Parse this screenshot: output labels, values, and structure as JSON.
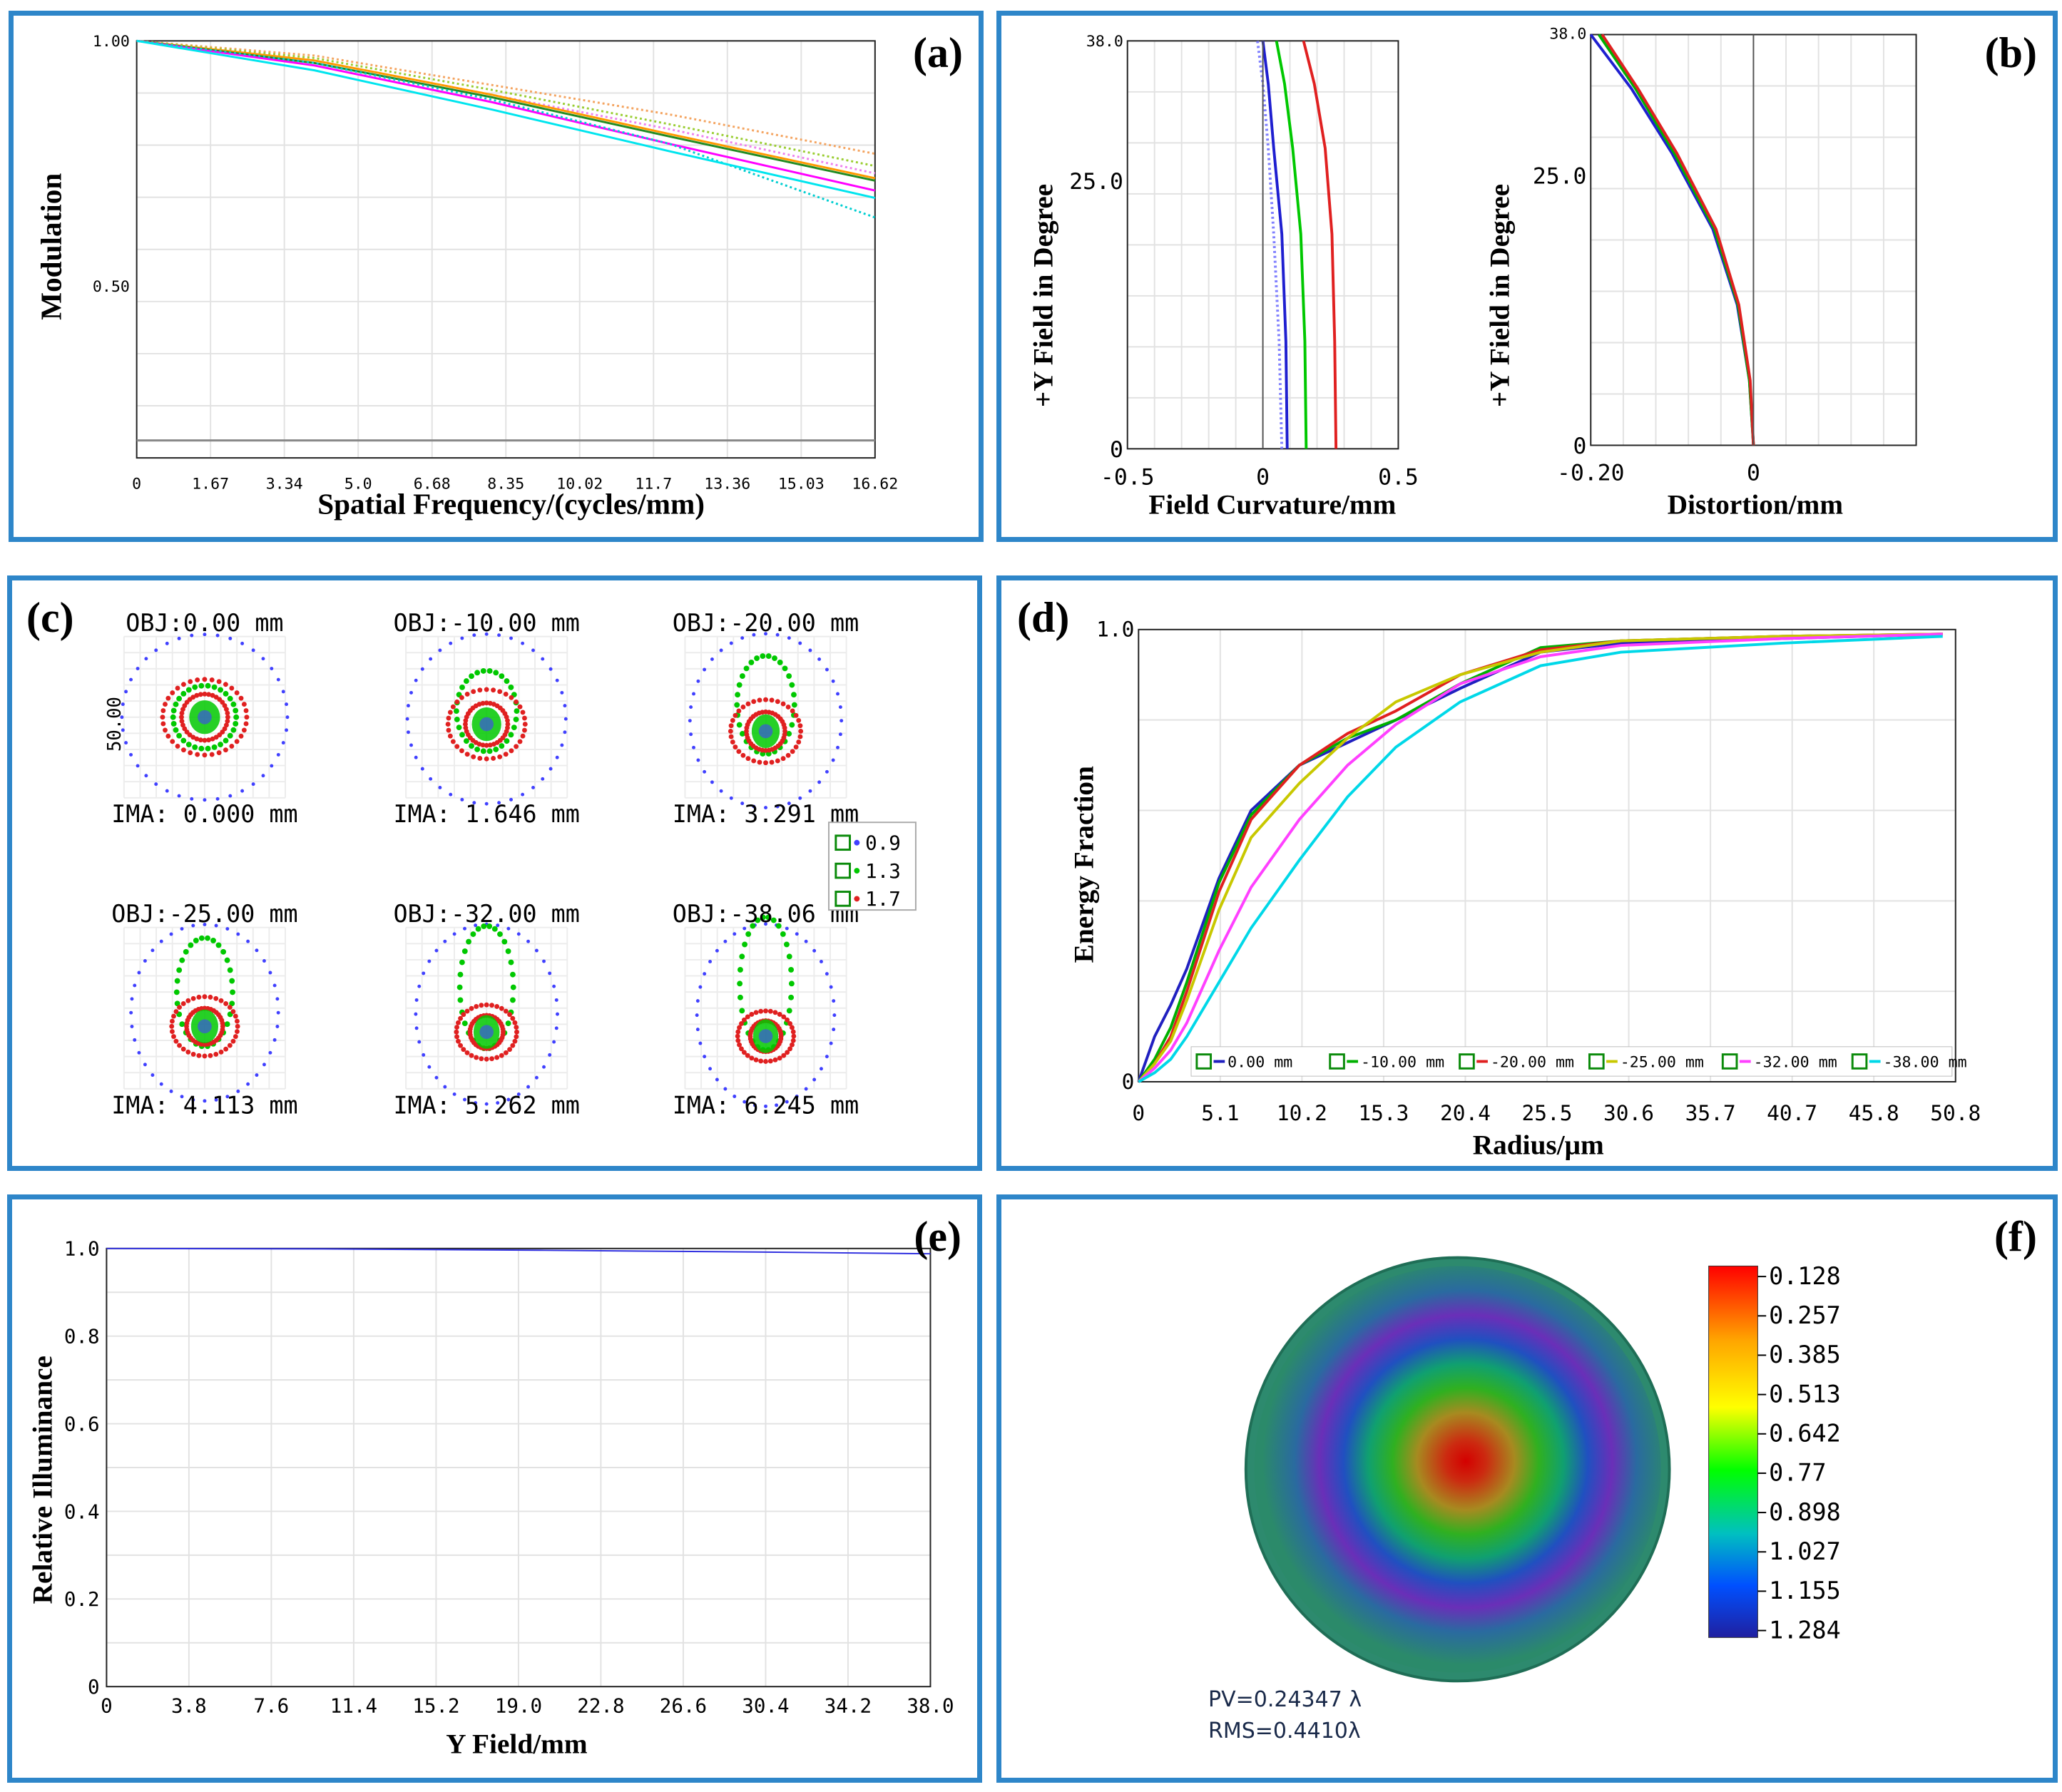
{
  "panels": {
    "a": {
      "label": "(a)"
    },
    "b": {
      "label": "(b)"
    },
    "c": {
      "label": "(c)"
    },
    "d": {
      "label": "(d)"
    },
    "e": {
      "label": "(e)"
    },
    "f": {
      "label": "(f)"
    }
  },
  "chart_data": [
    {
      "id": "a",
      "type": "line",
      "xlabel": "Spatial Frequency/(cycles/mm)",
      "ylabel": "Modulation",
      "xlim": [
        0,
        16.62
      ],
      "ylim": [
        0.15,
        1.0
      ],
      "x_ticks": [
        "0",
        "1.67",
        "3.34",
        "5.0",
        "6.68",
        "8.35",
        "10.02",
        "11.7",
        "13.36",
        "15.03",
        "16.62"
      ],
      "y_ticks": [
        "1.00",
        "0.50"
      ],
      "grid": true,
      "series": [
        {
          "color": "#f4a460",
          "dashed": true,
          "x": [
            0,
            4,
            8,
            12,
            16.62
          ],
          "y": [
            1.0,
            0.97,
            0.91,
            0.85,
            0.77
          ]
        },
        {
          "color": "#9acd32",
          "dashed": true,
          "x": [
            0,
            4,
            8,
            12,
            16.62
          ],
          "y": [
            1.0,
            0.965,
            0.9,
            0.83,
            0.745
          ]
        },
        {
          "color": "#ee82ee",
          "dashed": true,
          "x": [
            0,
            4,
            8,
            12,
            16.62
          ],
          "y": [
            1.0,
            0.96,
            0.89,
            0.82,
            0.73
          ]
        },
        {
          "color": "#ff9900",
          "dashed": false,
          "x": [
            0,
            4,
            8,
            12,
            16.62
          ],
          "y": [
            1.0,
            0.96,
            0.89,
            0.81,
            0.72
          ]
        },
        {
          "color": "#228b22",
          "dashed": false,
          "x": [
            0,
            4,
            8,
            12,
            16.62
          ],
          "y": [
            1.0,
            0.955,
            0.885,
            0.805,
            0.715
          ]
        },
        {
          "color": "#ff00ff",
          "dashed": false,
          "x": [
            0,
            4,
            8,
            12,
            16.62
          ],
          "y": [
            1.0,
            0.95,
            0.875,
            0.79,
            0.695
          ]
        },
        {
          "color": "#00ced1",
          "dashed": true,
          "x": [
            0,
            4,
            8,
            12,
            16.62
          ],
          "y": [
            1.0,
            0.955,
            0.88,
            0.79,
            0.64
          ]
        },
        {
          "color": "#00e5ee",
          "dashed": false,
          "x": [
            0,
            4,
            8,
            12,
            16.62
          ],
          "y": [
            1.0,
            0.94,
            0.86,
            0.775,
            0.68
          ]
        }
      ]
    },
    {
      "id": "b1",
      "type": "line",
      "xlabel": "Field Curvature/mm",
      "ylabel": "+Y Field in Degree",
      "xlim": [
        -0.5,
        0.5
      ],
      "ylim": [
        0,
        38.0
      ],
      "x_ticks": [
        "-0.5",
        "0",
        "0.5"
      ],
      "y_ticks": [
        "0",
        "25.0",
        "38.0"
      ],
      "grid": true,
      "series": [
        {
          "color": "#1f1fd0",
          "x": [
            0.09,
            0.085,
            0.07,
            0.04,
            0.02,
            0.0
          ],
          "y": [
            0,
            10,
            20,
            28,
            34,
            38
          ]
        },
        {
          "color": "#8080ff",
          "dashed": true,
          "x": [
            0.07,
            0.06,
            0.04,
            0.02,
            0.0,
            -0.02
          ],
          "y": [
            0,
            10,
            20,
            28,
            34,
            38
          ]
        },
        {
          "color": "#00c800",
          "x": [
            0.16,
            0.155,
            0.14,
            0.11,
            0.08,
            0.05
          ],
          "y": [
            0,
            10,
            20,
            28,
            34,
            38
          ]
        },
        {
          "color": "#e02020",
          "x": [
            0.27,
            0.265,
            0.255,
            0.23,
            0.19,
            0.15
          ],
          "y": [
            0,
            10,
            20,
            28,
            34,
            38
          ]
        }
      ]
    },
    {
      "id": "b2",
      "type": "line",
      "xlabel": "Distortion/mm",
      "ylabel": "+Y Field in Degree",
      "xlim": [
        -0.2,
        0.2
      ],
      "ylim": [
        0,
        38.0
      ],
      "x_ticks": [
        "-0.20",
        "0"
      ],
      "y_ticks": [
        "0",
        "25.0",
        "38.0"
      ],
      "grid": true,
      "series": [
        {
          "color": "#1f1fd0",
          "x": [
            0,
            -0.005,
            -0.02,
            -0.05,
            -0.1,
            -0.15,
            -0.2
          ],
          "y": [
            0,
            6,
            13,
            20,
            27,
            33,
            38
          ]
        },
        {
          "color": "#00b000",
          "x": [
            0,
            -0.005,
            -0.019,
            -0.048,
            -0.097,
            -0.145,
            -0.19
          ],
          "y": [
            0,
            6,
            13,
            20,
            27,
            33,
            38
          ]
        },
        {
          "color": "#e02020",
          "x": [
            0,
            -0.004,
            -0.018,
            -0.046,
            -0.094,
            -0.142,
            -0.186
          ],
          "y": [
            0,
            6,
            13,
            20,
            27,
            33,
            38
          ]
        }
      ]
    },
    {
      "id": "c",
      "type": "scatter",
      "scale_label": "50.00",
      "legend": [
        {
          "label": "0.9",
          "color": "#4040ff"
        },
        {
          "label": "1.3",
          "color": "#00c800"
        },
        {
          "label": "1.7",
          "color": "#e02020"
        }
      ],
      "spots": [
        {
          "obj": "OBJ:0.00 mm",
          "ima": "IMA: 0.000 mm"
        },
        {
          "obj": "OBJ:-10.00 mm",
          "ima": "IMA: 1.646 mm"
        },
        {
          "obj": "OBJ:-20.00 mm",
          "ima": "IMA: 3.291 mm"
        },
        {
          "obj": "OBJ:-25.00 mm",
          "ima": "IMA: 4.113 mm"
        },
        {
          "obj": "OBJ:-32.00 mm",
          "ima": "IMA: 5.262 mm"
        },
        {
          "obj": "OBJ:-38.06 mm",
          "ima": "IMA: 6.245 mm"
        }
      ]
    },
    {
      "id": "d",
      "type": "line",
      "xlabel": "Radius/μm",
      "ylabel": "Energy Fraction",
      "xlim": [
        0,
        50.8
      ],
      "ylim": [
        0,
        1.0
      ],
      "x_ticks": [
        "0",
        "5.1",
        "10.2",
        "15.3",
        "20.4",
        "25.5",
        "30.6",
        "35.7",
        "40.7",
        "45.8",
        "50.8"
      ],
      "y_ticks": [
        "0",
        "1.0"
      ],
      "grid": true,
      "series": [
        {
          "name": "0.00 mm",
          "color": "#2020c0",
          "x": [
            0,
            1,
            2,
            3,
            5,
            7,
            10,
            13,
            16,
            20,
            25,
            30,
            40,
            50
          ],
          "y": [
            0,
            0.1,
            0.17,
            0.25,
            0.45,
            0.6,
            0.7,
            0.75,
            0.8,
            0.87,
            0.95,
            0.97,
            0.98,
            0.99
          ]
        },
        {
          "name": "-10.00 mm",
          "color": "#00b000",
          "x": [
            0,
            1,
            2,
            3,
            5,
            7,
            10,
            13,
            16,
            20,
            25,
            30,
            40,
            50
          ],
          "y": [
            0,
            0.05,
            0.12,
            0.22,
            0.44,
            0.59,
            0.7,
            0.76,
            0.8,
            0.88,
            0.96,
            0.975,
            0.985,
            0.99
          ]
        },
        {
          "name": "-20.00 mm",
          "color": "#e02020",
          "x": [
            0,
            1,
            2,
            3,
            5,
            7,
            10,
            13,
            16,
            20,
            25,
            30,
            40,
            50
          ],
          "y": [
            0,
            0.04,
            0.1,
            0.2,
            0.42,
            0.58,
            0.7,
            0.77,
            0.82,
            0.9,
            0.955,
            0.975,
            0.985,
            0.99
          ]
        },
        {
          "name": "-25.00 mm",
          "color": "#c8c800",
          "x": [
            0,
            1,
            2,
            3,
            5,
            7,
            10,
            13,
            16,
            20,
            25,
            30,
            40,
            50
          ],
          "y": [
            0,
            0.04,
            0.09,
            0.18,
            0.38,
            0.54,
            0.66,
            0.76,
            0.84,
            0.9,
            0.95,
            0.975,
            0.985,
            0.99
          ]
        },
        {
          "name": "-32.00 mm",
          "color": "#ff40ff",
          "x": [
            0,
            1,
            2,
            3,
            5,
            7,
            10,
            13,
            16,
            20,
            25,
            30,
            40,
            50
          ],
          "y": [
            0,
            0.03,
            0.07,
            0.13,
            0.29,
            0.43,
            0.58,
            0.7,
            0.79,
            0.88,
            0.94,
            0.965,
            0.98,
            0.99
          ]
        },
        {
          "name": "-38.00 mm",
          "color": "#00d8e8",
          "x": [
            0,
            1,
            2,
            3,
            5,
            7,
            10,
            13,
            16,
            20,
            25,
            30,
            40,
            50
          ],
          "y": [
            0,
            0.02,
            0.05,
            0.1,
            0.22,
            0.34,
            0.49,
            0.63,
            0.74,
            0.84,
            0.92,
            0.95,
            0.97,
            0.985
          ]
        }
      ]
    },
    {
      "id": "e",
      "type": "line",
      "xlabel": "Y Field/mm",
      "ylabel": "Relative Illuminance",
      "xlim": [
        0,
        38.0
      ],
      "ylim": [
        0,
        1.0
      ],
      "x_ticks": [
        "0",
        "3.8",
        "7.6",
        "11.4",
        "15.2",
        "19.0",
        "22.8",
        "26.6",
        "30.4",
        "34.2",
        "38.0"
      ],
      "y_ticks": [
        "0",
        "0.2",
        "0.4",
        "0.6",
        "0.8",
        "1.0"
      ],
      "grid": true,
      "series": [
        {
          "color": "#3030e0",
          "x": [
            0,
            10,
            20,
            30,
            38
          ],
          "y": [
            1.0,
            0.999,
            0.996,
            0.992,
            0.988
          ]
        }
      ]
    },
    {
      "id": "f",
      "type": "heatmap",
      "colorbar_ticks": [
        "0.128",
        "0.257",
        "0.385",
        "0.513",
        "0.642",
        "0.77",
        "0.898",
        "1.027",
        "1.155",
        "1.284"
      ],
      "pv": "PV=0.24347 λ",
      "rms": "RMS=0.4410λ"
    }
  ]
}
